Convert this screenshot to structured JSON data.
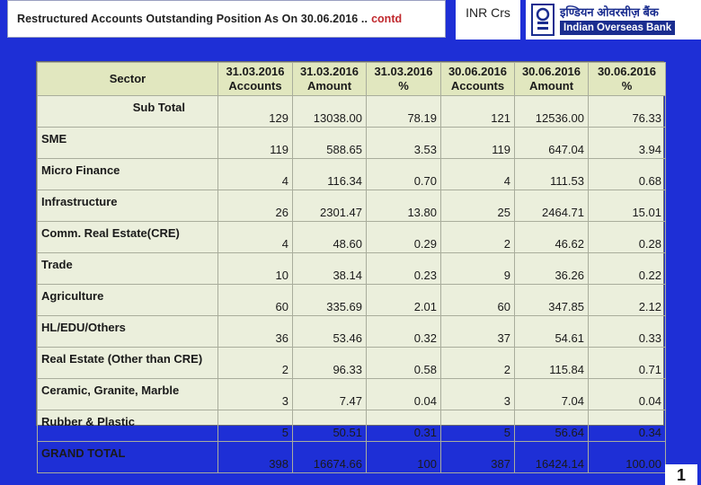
{
  "title": {
    "main": "Restructured Accounts Outstanding Position As On 30.06.2016 ..",
    "contd": "contd"
  },
  "currency": "INR Crs",
  "logo": {
    "hindi": "इण्डियन ओवरसीज़ बैंक",
    "english": "Indian Overseas Bank"
  },
  "table": {
    "headers": [
      "Sector",
      "31.03.2016 Accounts",
      "31.03.2016 Amount",
      "31.03.2016 %",
      "30.06.2016 Accounts",
      "30.06.2016 Amount",
      "30.06.2016 %"
    ],
    "rows": [
      [
        "Sub Total",
        "129",
        "13038.00",
        "78.19",
        "121",
        "12536.00",
        "76.33"
      ],
      [
        "SME",
        "119",
        "588.65",
        "3.53",
        "119",
        "647.04",
        "3.94"
      ],
      [
        "Micro Finance",
        "4",
        "116.34",
        "0.70",
        "4",
        "111.53",
        "0.68"
      ],
      [
        "Infrastructure",
        "26",
        "2301.47",
        "13.80",
        "25",
        "2464.71",
        "15.01"
      ],
      [
        "Comm. Real Estate(CRE)",
        "4",
        "48.60",
        "0.29",
        "2",
        "46.62",
        "0.28"
      ],
      [
        "Trade",
        "10",
        "38.14",
        "0.23",
        "9",
        "36.26",
        "0.22"
      ],
      [
        "Agriculture",
        "60",
        "335.69",
        "2.01",
        "60",
        "347.85",
        "2.12"
      ],
      [
        "HL/EDU/Others",
        "36",
        "53.46",
        "0.32",
        "37",
        "54.61",
        "0.33"
      ],
      [
        "Real Estate (Other than CRE)",
        "2",
        "96.33",
        "0.58",
        "2",
        "115.84",
        "0.71"
      ],
      [
        "Ceramic, Granite, Marble",
        "3",
        "7.47",
        "0.04",
        "3",
        "7.04",
        "0.04"
      ],
      [
        "Rubber & Plastic",
        "5",
        "50.51",
        "0.31",
        "5",
        "56.64",
        "0.34"
      ],
      [
        "GRAND TOTAL",
        "398",
        "16674.66",
        "100",
        "387",
        "16424.14",
        "100.00"
      ]
    ]
  },
  "page_number": "1",
  "colors": {
    "background": "#1e2fd6",
    "table_bg": "#ebefdc",
    "header_bg": "#e1e7bf",
    "contd_red": "#c0282d",
    "bank_blue": "#1a2d8f"
  }
}
